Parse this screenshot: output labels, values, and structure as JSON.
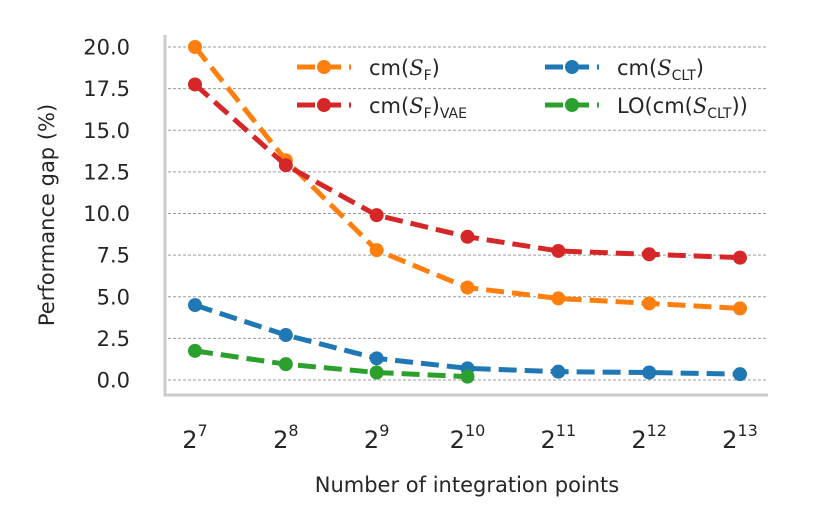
{
  "chart_data": {
    "type": "line",
    "xlabel": "Number of integration points",
    "ylabel": "Performance gap (%)",
    "x_tick_labels": [
      {
        "base": "2",
        "exp": "7"
      },
      {
        "base": "2",
        "exp": "8"
      },
      {
        "base": "2",
        "exp": "9"
      },
      {
        "base": "2",
        "exp": "10"
      },
      {
        "base": "2",
        "exp": "11"
      },
      {
        "base": "2",
        "exp": "12"
      },
      {
        "base": "2",
        "exp": "13"
      }
    ],
    "x": [
      7,
      8,
      9,
      10,
      11,
      12,
      13
    ],
    "y_ticks": [
      0.0,
      2.5,
      5.0,
      7.5,
      10.0,
      12.5,
      15.0,
      17.5,
      20.0
    ],
    "y_tick_labels": [
      "0.0",
      "2.5",
      "5.0",
      "7.5",
      "10.0",
      "12.5",
      "15.0",
      "17.5",
      "20.0"
    ],
    "ylim": [
      -0.9,
      20.6
    ],
    "grid": "horizontal-dashed",
    "legend_position": "top-right",
    "series": [
      {
        "name": "cm(S_F)",
        "label_main": "cm(",
        "label_script": "S",
        "label_sub": "F",
        "label_tail": ")",
        "color": "#ff7f0e",
        "x": [
          7,
          8,
          9,
          10,
          11,
          12,
          13
        ],
        "values": [
          20.0,
          13.2,
          7.8,
          5.55,
          4.9,
          4.6,
          4.3
        ]
      },
      {
        "name": "cm(S_F)_VAE",
        "label_main": "cm(",
        "label_script": "S",
        "label_sub": "F",
        "label_tail": ")",
        "label_tail_sub": "VAE",
        "color": "#d62728",
        "x": [
          7,
          8,
          9,
          10,
          11,
          12,
          13
        ],
        "values": [
          17.75,
          12.9,
          9.9,
          8.6,
          7.75,
          7.55,
          7.35
        ]
      },
      {
        "name": "cm(S_CLT)",
        "label_main": "cm(",
        "label_script": "S",
        "label_sub": "CLT",
        "label_tail": ")",
        "color": "#1f77b4",
        "x": [
          7,
          8,
          9,
          10,
          11,
          12,
          13
        ],
        "values": [
          4.5,
          2.7,
          1.3,
          0.7,
          0.5,
          0.45,
          0.35
        ]
      },
      {
        "name": "LO(cm(S_CLT))",
        "label_main": "LO(cm(",
        "label_script": "S",
        "label_sub": "CLT",
        "label_tail": "))",
        "color": "#2ca02c",
        "x": [
          7,
          8,
          9,
          10
        ],
        "values": [
          1.75,
          0.95,
          0.45,
          0.2
        ]
      }
    ]
  }
}
